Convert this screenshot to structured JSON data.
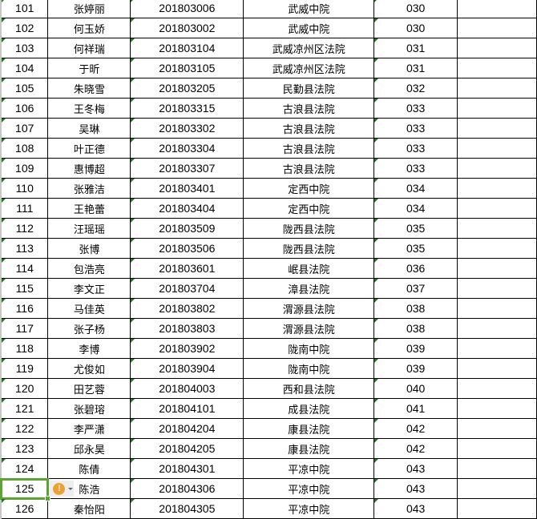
{
  "rows": [
    {
      "no": "101",
      "name": "张婷丽",
      "id": "201803006",
      "court": "武威中院",
      "code": "030"
    },
    {
      "no": "102",
      "name": "何玉娇",
      "id": "201803002",
      "court": "武威中院",
      "code": "030"
    },
    {
      "no": "103",
      "name": "何祥瑞",
      "id": "201803104",
      "court": "武威凉州区法院",
      "code": "031"
    },
    {
      "no": "104",
      "name": "于昕",
      "id": "201803105",
      "court": "武威凉州区法院",
      "code": "031"
    },
    {
      "no": "105",
      "name": "朱晓雪",
      "id": "201803205",
      "court": "民勤县法院",
      "code": "032"
    },
    {
      "no": "106",
      "name": "王冬梅",
      "id": "201803315",
      "court": "古浪县法院",
      "code": "033"
    },
    {
      "no": "107",
      "name": "吴琳",
      "id": "201803302",
      "court": "古浪县法院",
      "code": "033"
    },
    {
      "no": "108",
      "name": "叶正德",
      "id": "201803304",
      "court": "古浪县法院",
      "code": "033"
    },
    {
      "no": "109",
      "name": "惠博超",
      "id": "201803307",
      "court": "古浪县法院",
      "code": "033"
    },
    {
      "no": "110",
      "name": "张雅洁",
      "id": "201803401",
      "court": "定西中院",
      "code": "034"
    },
    {
      "no": "111",
      "name": "王艳蕾",
      "id": "201803404",
      "court": "定西中院",
      "code": "034"
    },
    {
      "no": "112",
      "name": "汪瑶瑶",
      "id": "201803509",
      "court": "陇西县法院",
      "code": "035"
    },
    {
      "no": "113",
      "name": "张博",
      "id": "201803506",
      "court": "陇西县法院",
      "code": "035"
    },
    {
      "no": "114",
      "name": "包浩亮",
      "id": "201803601",
      "court": "岷县法院",
      "code": "036"
    },
    {
      "no": "115",
      "name": "李文正",
      "id": "201803704",
      "court": "漳县法院",
      "code": "037"
    },
    {
      "no": "116",
      "name": "马佳英",
      "id": "201803802",
      "court": "渭源县法院",
      "code": "038"
    },
    {
      "no": "117",
      "name": "张子杨",
      "id": "201803803",
      "court": "渭源县法院",
      "code": "038"
    },
    {
      "no": "118",
      "name": "李博",
      "id": "201803902",
      "court": "陇南中院",
      "code": "039"
    },
    {
      "no": "119",
      "name": "尤俊如",
      "id": "201803904",
      "court": "陇南中院",
      "code": "039"
    },
    {
      "no": "120",
      "name": "田艺蓉",
      "id": "201804003",
      "court": "西和县法院",
      "code": "040"
    },
    {
      "no": "121",
      "name": "张碧瑢",
      "id": "201804101",
      "court": "成县法院",
      "code": "041"
    },
    {
      "no": "122",
      "name": "李严潇",
      "id": "201804204",
      "court": "康县法院",
      "code": "042"
    },
    {
      "no": "123",
      "name": "邱永昊",
      "id": "201804205",
      "court": "康县法院",
      "code": "042"
    },
    {
      "no": "124",
      "name": "陈倩",
      "id": "201804301",
      "court": "平凉中院",
      "code": "043"
    },
    {
      "no": "125",
      "name": "陈浩",
      "id": "201804306",
      "court": "平凉中院",
      "code": "043"
    },
    {
      "no": "126",
      "name": "秦怡阳",
      "id": "201804305",
      "court": "平凉中院",
      "code": "043"
    }
  ],
  "selected_row": "125",
  "warning_icon": {
    "name": "exclamation-warning-icon",
    "glyph": "!",
    "color": "#f0a030"
  },
  "colors": {
    "selection": "#5aa532",
    "error_marker": "#1a7a1a"
  }
}
